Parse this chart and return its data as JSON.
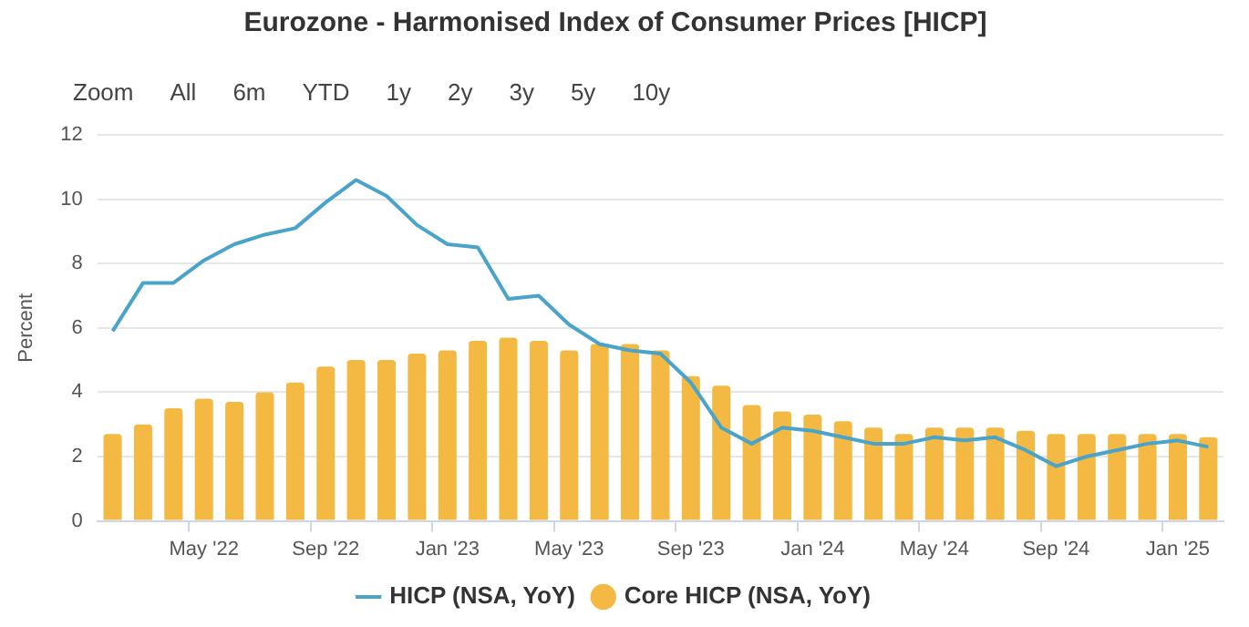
{
  "chart_data": {
    "type": "bar",
    "title": "Eurozone - Harmonised Index of Consumer Prices [HICP]",
    "ylabel": "Percent",
    "annotations": [
      "Zoom",
      "All",
      "6m",
      "YTD",
      "1y",
      "2y",
      "3y",
      "5y",
      "10y"
    ],
    "categories": [
      null,
      null,
      null,
      "May '22",
      null,
      null,
      null,
      "Sep '22",
      null,
      null,
      null,
      "Jan '23",
      null,
      null,
      null,
      "May '23",
      null,
      null,
      null,
      "Sep '23",
      null,
      null,
      null,
      "Jan '24",
      null,
      null,
      null,
      "May '24",
      null,
      null,
      null,
      "Sep '24",
      null,
      null,
      null,
      "Jan '25",
      null
    ],
    "series": [
      {
        "name": "HICP (NSA, YoY)",
        "type": "line",
        "color": "#4aa3c9",
        "marker": "none",
        "values": [
          5.9,
          7.4,
          7.4,
          8.1,
          8.6,
          8.9,
          9.1,
          9.9,
          10.6,
          10.1,
          9.2,
          8.6,
          8.5,
          6.9,
          7.0,
          6.1,
          5.5,
          5.3,
          5.2,
          4.3,
          2.9,
          2.4,
          2.9,
          2.8,
          2.6,
          2.4,
          2.4,
          2.6,
          2.5,
          2.6,
          2.2,
          1.7,
          2.0,
          2.2,
          2.4,
          2.5,
          2.3
        ]
      },
      {
        "name": "Core HICP (NSA, YoY)",
        "color": "#f4b942",
        "values": [
          2.7,
          3.0,
          3.5,
          3.8,
          3.7,
          4.0,
          4.3,
          4.8,
          5.0,
          5.0,
          5.2,
          5.3,
          5.6,
          5.7,
          5.6,
          5.3,
          5.5,
          5.5,
          5.3,
          4.5,
          4.2,
          3.6,
          3.4,
          3.3,
          3.1,
          2.9,
          2.7,
          2.9,
          2.9,
          2.9,
          2.8,
          2.7,
          2.7,
          2.7,
          2.7,
          2.7,
          2.6
        ]
      }
    ],
    "ylim": [
      0,
      12
    ],
    "yticks": [
      0,
      2,
      4,
      6,
      8,
      10,
      12
    ],
    "grid": "y",
    "legend": "bottom"
  }
}
